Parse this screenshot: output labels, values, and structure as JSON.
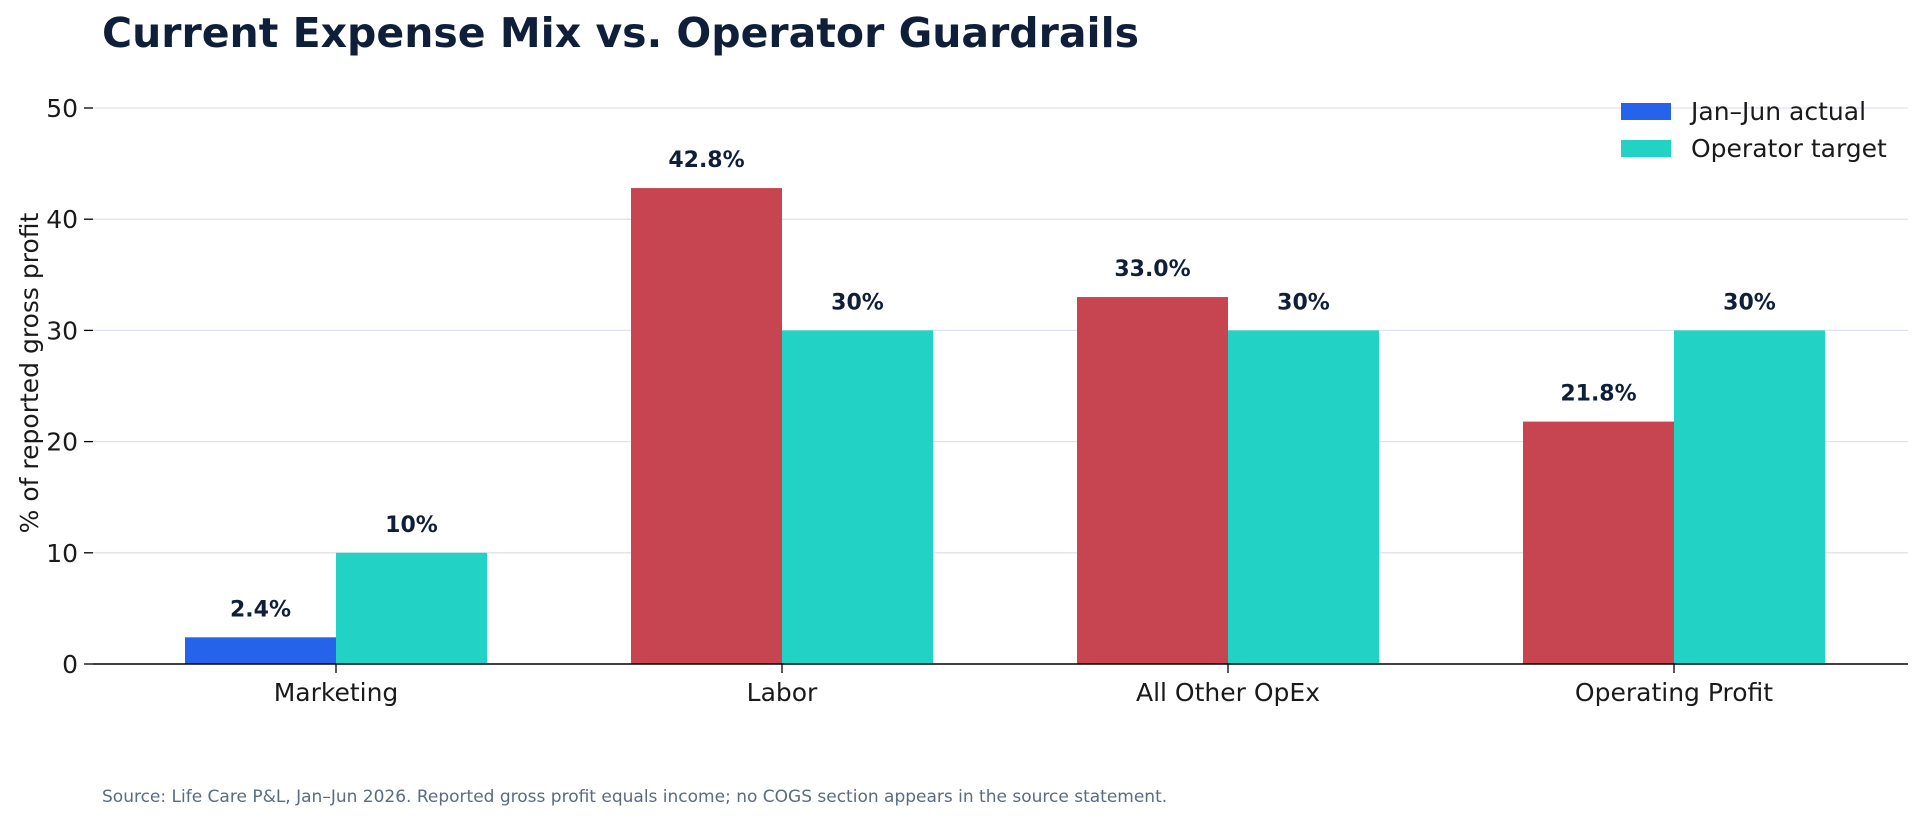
{
  "chart_data": {
    "type": "bar",
    "title": "Current Expense Mix vs. Operator Guardrails",
    "ylabel": "% of reported gross profit",
    "xlabel": "",
    "ylim": [
      0,
      50
    ],
    "yticks": [
      0,
      10,
      20,
      30,
      40,
      50
    ],
    "grid": true,
    "legend_position": "top-right",
    "categories": [
      "Marketing",
      "Labor",
      "All Other OpEx",
      "Operating Profit"
    ],
    "series": [
      {
        "name": "Jan–Jun actual",
        "values": [
          2.4,
          42.8,
          33.0,
          21.8
        ],
        "labels": [
          "2.4%",
          "42.8%",
          "33.0%",
          "21.8%"
        ],
        "legend_color": "#2563eb",
        "colors": [
          "#2563eb",
          "#c64550",
          "#c64550",
          "#c64550"
        ]
      },
      {
        "name": "Operator target",
        "values": [
          10,
          30,
          30,
          30
        ],
        "labels": [
          "10%",
          "30%",
          "30%",
          "30%"
        ],
        "legend_color": "#22d3c5",
        "colors": [
          "#22d3c5",
          "#22d3c5",
          "#22d3c5",
          "#22d3c5"
        ]
      }
    ],
    "source": "Source: Life Care P&L, Jan–Jun 2026. Reported gross profit equals income; no COGS section appears in the source statement."
  }
}
